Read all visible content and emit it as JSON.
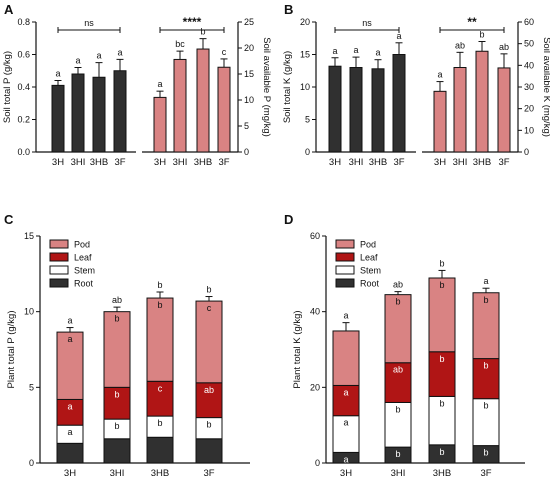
{
  "colors": {
    "dark": "#303030",
    "pink": "#d98383",
    "red": "#b01515",
    "white": "#ffffff",
    "black": "#1a1a1a"
  },
  "chart_data": [
    {
      "panel": "A",
      "type": "bar",
      "categories": [
        "3H",
        "3HI",
        "3HB",
        "3F"
      ],
      "ylabel_left": "Soil total P (g/kg)",
      "ylabel_right": "Soil available P (mg/kg)",
      "ylim_left": [
        0,
        0.8
      ],
      "yticks_left": [
        "0.0",
        "0.2",
        "0.4",
        "0.6",
        "0.8"
      ],
      "ylim_right": [
        0,
        25
      ],
      "yticks_right": [
        "0",
        "5",
        "10",
        "15",
        "20",
        "25"
      ],
      "series": [
        {
          "axis": "left",
          "color": "dark",
          "values": [
            0.41,
            0.48,
            0.46,
            0.5
          ],
          "errors": [
            0.03,
            0.04,
            0.09,
            0.07
          ],
          "letters": [
            "a",
            "a",
            "a",
            "a"
          ],
          "bracket_label": "ns"
        },
        {
          "axis": "right",
          "color": "pink",
          "values": [
            10.5,
            17.8,
            19.8,
            16.3
          ],
          "errors": [
            1.2,
            1.6,
            2.0,
            1.6
          ],
          "letters": [
            "a",
            "bc",
            "b",
            "c"
          ],
          "bracket_label": "****"
        }
      ]
    },
    {
      "panel": "B",
      "type": "bar",
      "categories": [
        "3H",
        "3HI",
        "3HB",
        "3F"
      ],
      "ylabel_left": "Soil total K (g/kg)",
      "ylabel_right": "Soil available K (mg/kg)",
      "ylim_left": [
        0,
        20
      ],
      "yticks_left": [
        "0",
        "5",
        "10",
        "15",
        "20"
      ],
      "ylim_right": [
        0,
        60
      ],
      "yticks_right": [
        "0",
        "10",
        "20",
        "30",
        "40",
        "50",
        "60"
      ],
      "series": [
        {
          "axis": "left",
          "color": "dark",
          "values": [
            13.2,
            13.0,
            12.8,
            15.0
          ],
          "errors": [
            1.3,
            1.6,
            1.4,
            1.8
          ],
          "letters": [
            "a",
            "a",
            "a",
            "a"
          ],
          "bracket_label": "ns"
        },
        {
          "axis": "right",
          "color": "pink",
          "values": [
            28.0,
            39.0,
            46.5,
            38.8
          ],
          "errors": [
            4.5,
            7.0,
            4.5,
            6.5
          ],
          "letters": [
            "a",
            "ab",
            "b",
            "ab"
          ],
          "bracket_label": "**"
        }
      ]
    },
    {
      "panel": "C",
      "type": "stacked-bar",
      "categories": [
        "3H",
        "3HI",
        "3HB",
        "3F"
      ],
      "ylabel": "Plant total P (g/kg)",
      "ylim": [
        0,
        15
      ],
      "yticks": [
        "0",
        "5",
        "10",
        "15"
      ],
      "legend": [
        "Pod",
        "Leaf",
        "Stem",
        "Root"
      ],
      "segments": [
        {
          "name": "Root",
          "color": "dark",
          "values": [
            1.3,
            1.6,
            1.7,
            1.6
          ],
          "errors": [
            0.08,
            0.08,
            0.08,
            0.08
          ],
          "letters": [
            "",
            "",
            "",
            ""
          ]
        },
        {
          "name": "Stem",
          "color": "white",
          "values": [
            1.2,
            1.3,
            1.4,
            1.4
          ],
          "errors": [
            0.1,
            0.1,
            0.1,
            0.1
          ],
          "letters": [
            "a",
            "b",
            "b",
            "b"
          ]
        },
        {
          "name": "Leaf",
          "color": "red",
          "values": [
            1.7,
            2.1,
            2.3,
            2.3
          ],
          "errors": [
            0.1,
            0.1,
            0.1,
            0.1
          ],
          "letters": [
            "a",
            "b",
            "c",
            "ab"
          ]
        },
        {
          "name": "Pod",
          "color": "pink",
          "values": [
            4.45,
            5.0,
            5.5,
            5.4
          ],
          "errors": [
            0.3,
            0.3,
            0.4,
            0.3
          ],
          "letters": [
            "a",
            "b",
            "b",
            "c"
          ],
          "top_letters": [
            "a",
            "ab",
            "b",
            "b"
          ]
        }
      ]
    },
    {
      "panel": "D",
      "type": "stacked-bar",
      "categories": [
        "3H",
        "3HI",
        "3HB",
        "3F"
      ],
      "ylabel": "Plant total K (g/kg)",
      "ylim": [
        0,
        60
      ],
      "yticks": [
        "0",
        "20",
        "40",
        "60"
      ],
      "legend": [
        "Pod",
        "Leaf",
        "Stem",
        "Root"
      ],
      "segments": [
        {
          "name": "Root",
          "color": "dark",
          "values": [
            2.8,
            4.2,
            4.8,
            4.6
          ],
          "errors": [
            0.3,
            0.3,
            0.3,
            0.3
          ],
          "letters": [
            "a",
            "b",
            "b",
            "b"
          ]
        },
        {
          "name": "Stem",
          "color": "white",
          "values": [
            9.7,
            11.8,
            12.8,
            12.4
          ],
          "errors": [
            0.5,
            0.5,
            0.5,
            0.5
          ],
          "letters": [
            "a",
            "b",
            "b",
            "b"
          ]
        },
        {
          "name": "Leaf",
          "color": "red",
          "values": [
            8.0,
            10.5,
            11.8,
            10.6
          ],
          "errors": [
            0.8,
            0.9,
            1.0,
            0.9
          ],
          "letters": [
            "a",
            "ab",
            "b",
            "b"
          ]
        },
        {
          "name": "Pod",
          "color": "pink",
          "values": [
            14.4,
            18.0,
            19.5,
            17.4
          ],
          "errors": [
            2.2,
            0.8,
            2.0,
            1.2
          ],
          "letters": [
            "",
            "b",
            "b",
            "b"
          ],
          "top_letters": [
            "a",
            "ab",
            "b",
            "a"
          ]
        }
      ]
    }
  ]
}
